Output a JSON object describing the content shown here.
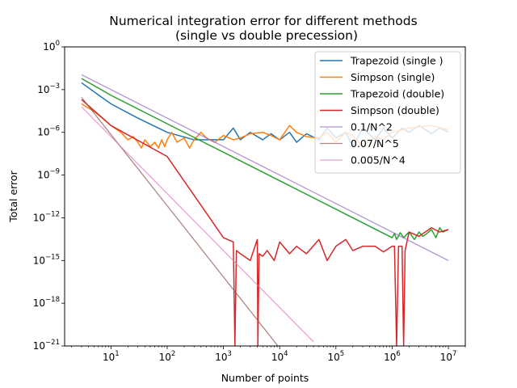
{
  "chart_data": {
    "type": "line",
    "title": "Numerical integration error for different methods",
    "subtitle": "(single vs double precession)",
    "xlabel": "Number of points",
    "ylabel": "Total error",
    "xscale": "log",
    "yscale": "log",
    "xlim": [
      1.5,
      20000000
    ],
    "ylim": [
      1e-21,
      1
    ],
    "x_ticks": [
      {
        "value": 10,
        "base": "10",
        "exp": "1"
      },
      {
        "value": 100,
        "base": "10",
        "exp": "2"
      },
      {
        "value": 1000,
        "base": "10",
        "exp": "3"
      },
      {
        "value": 10000,
        "base": "10",
        "exp": "4"
      },
      {
        "value": 100000,
        "base": "10",
        "exp": "5"
      },
      {
        "value": 1000000,
        "base": "10",
        "exp": "6"
      },
      {
        "value": 10000000,
        "base": "10",
        "exp": "7"
      }
    ],
    "y_ticks": [
      {
        "value": 1e-21,
        "base": "10",
        "exp": "−21"
      },
      {
        "value": 1e-18,
        "base": "10",
        "exp": "−18"
      },
      {
        "value": 1e-15,
        "base": "10",
        "exp": "−15"
      },
      {
        "value": 1e-12,
        "base": "10",
        "exp": "−12"
      },
      {
        "value": 1e-09,
        "base": "10",
        "exp": "−9"
      },
      {
        "value": 1e-06,
        "base": "10",
        "exp": "−6"
      },
      {
        "value": 0.001,
        "base": "10",
        "exp": "−3"
      },
      {
        "value": 1,
        "base": "10",
        "exp": "0"
      }
    ],
    "legend_position": "top-right",
    "grid": false,
    "series": [
      {
        "name": "Trapezoid (single )",
        "color": "#1f77b4",
        "x": [
          3,
          10,
          30,
          100,
          300,
          1000,
          1500,
          2000,
          3000,
          5000,
          7000,
          10000,
          15000,
          20000,
          30000,
          50000,
          70000,
          100000,
          150000,
          200000,
          300000,
          500000,
          700000,
          1000000,
          1500000,
          2000000,
          3000000,
          5000000,
          7000000,
          10000000
        ],
        "y": [
          0.003,
          0.0001,
          1e-05,
          1e-06,
          3e-07,
          3e-07,
          2e-06,
          3e-07,
          1e-06,
          3e-07,
          8e-07,
          3e-07,
          1e-06,
          2e-07,
          8e-07,
          3e-07,
          2e-06,
          4e-07,
          1e-06,
          1e-07,
          2e-06,
          3e-07,
          2e-06,
          4e-07,
          2e-06,
          1e-06,
          3e-06,
          8e-07,
          2e-06,
          1e-06
        ]
      },
      {
        "name": "Simpson (single)",
        "color": "#ff7f0e",
        "x": [
          3,
          5,
          7,
          10,
          15,
          20,
          25,
          30,
          35,
          40,
          50,
          60,
          70,
          80,
          90,
          100,
          120,
          150,
          200,
          250,
          300,
          400,
          500,
          700,
          1000,
          1500,
          2000,
          3000,
          5000,
          7000,
          10000,
          15000,
          20000,
          30000,
          50000,
          70000,
          100000,
          150000,
          200000,
          300000,
          500000,
          700000,
          1000000,
          2000000,
          5000000,
          10000000
        ],
        "y": [
          0.0001,
          3e-05,
          1e-05,
          3e-06,
          1e-06,
          3e-07,
          5e-07,
          2e-07,
          8e-08,
          3e-07,
          1e-07,
          2e-07,
          8e-08,
          3e-07,
          1e-07,
          3e-07,
          1e-06,
          2e-07,
          4e-07,
          8e-08,
          3e-07,
          1e-06,
          4e-07,
          2e-07,
          6e-07,
          3e-07,
          4e-07,
          8e-07,
          1e-06,
          6e-07,
          3e-07,
          3e-06,
          1e-06,
          5e-07,
          4e-07,
          1e-06,
          2e-07,
          1e-06,
          6e-07,
          1e-07,
          5e-07,
          3e-07,
          1e-06,
          2e-06,
          3e-06,
          1.5e-06
        ]
      },
      {
        "name": "Trapezoid (double)",
        "color": "#2ca02c",
        "x": [
          3,
          10,
          100,
          1000,
          10000,
          100000,
          1000000,
          1100000,
          1200000,
          1400000,
          1600000,
          2000000,
          2500000,
          3000000,
          3500000,
          4000000,
          5000000,
          6000000,
          7000000,
          8000000,
          10000000
        ],
        "y": [
          0.006,
          0.0004,
          4e-06,
          4e-08,
          4e-10,
          4e-12,
          4e-14,
          8e-14,
          3e-14,
          9e-14,
          4e-14,
          1e-13,
          3e-14,
          1e-13,
          5e-14,
          7e-14,
          1.5e-13,
          4e-14,
          2e-13,
          1e-13,
          1.5e-13
        ]
      },
      {
        "name": "Simpson (double)",
        "color": "#d62728",
        "x": [
          3,
          10,
          100,
          1000,
          1500,
          1600,
          1700,
          2000,
          3000,
          4000,
          4100,
          4300,
          5000,
          6000,
          8000,
          10000,
          15000,
          20000,
          30000,
          50000,
          70000,
          100000,
          150000,
          200000,
          300000,
          500000,
          700000,
          1000000,
          1100000,
          1200000,
          1300000,
          1500000,
          1600000,
          1700000,
          2000000,
          3000000,
          5000000,
          7000000,
          10000000
        ],
        "y": [
          0.0002,
          3e-06,
          2e-08,
          4e-14,
          2e-14,
          1e-21,
          5e-15,
          3e-15,
          1e-15,
          3e-14,
          1e-21,
          3e-15,
          2e-15,
          5e-15,
          1e-15,
          2e-14,
          3e-15,
          1e-14,
          3e-15,
          3e-14,
          1e-15,
          1e-14,
          3e-14,
          5e-15,
          1e-14,
          1e-14,
          4e-15,
          1e-14,
          1e-14,
          1e-21,
          1e-14,
          1e-14,
          1e-21,
          5e-15,
          1e-13,
          5e-14,
          2e-13,
          1e-13,
          1.5e-13
        ]
      },
      {
        "name": "0.1/N^2",
        "color": "#9467bd",
        "x": [
          3,
          10000000
        ],
        "y": [
          0.0111,
          1e-15
        ]
      },
      {
        "name": "0.07/N^5",
        "color": "#8c564b",
        "x": [
          3,
          10000
        ],
        "y": [
          0.000288,
          7e-22
        ]
      },
      {
        "name": "0.005/N^4",
        "color": "#e377c2",
        "x": [
          3,
          40000
        ],
        "y": [
          6.17e-05,
          1.95e-21
        ]
      }
    ]
  }
}
